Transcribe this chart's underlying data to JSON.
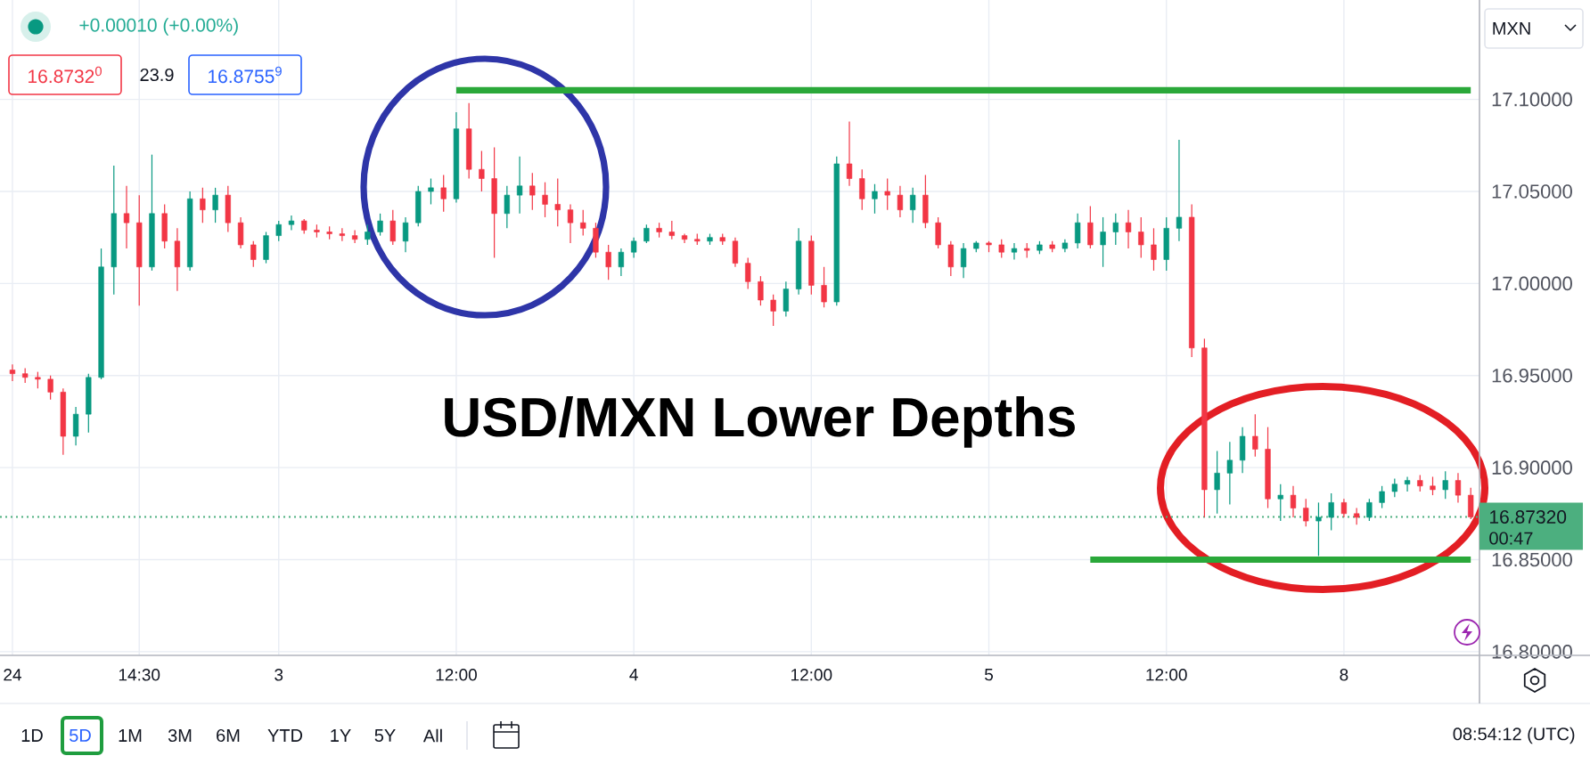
{
  "chart_data": {
    "type": "candlestick",
    "title": "USD/MXN Lower Depths",
    "ylabel": "MXN",
    "categories": [
      "24",
      null,
      null,
      null,
      null,
      null,
      null,
      null,
      null,
      null,
      "14:30",
      null,
      null,
      null,
      null,
      null,
      null,
      null,
      null,
      null,
      null,
      "3",
      null,
      null,
      null,
      null,
      null,
      null,
      null,
      null,
      null,
      null,
      null,
      null,
      null,
      "12:00",
      null,
      null,
      null,
      null,
      null,
      null,
      null,
      null,
      null,
      null,
      null,
      null,
      null,
      "4",
      null,
      null,
      null,
      null,
      null,
      null,
      null,
      null,
      null,
      null,
      null,
      null,
      null,
      "12:00",
      null,
      null,
      null,
      null,
      null,
      null,
      null,
      null,
      null,
      null,
      null,
      null,
      null,
      "5",
      null,
      null,
      null,
      null,
      null,
      null,
      null,
      null,
      null,
      null,
      null,
      null,
      null,
      "12:00",
      null,
      null,
      null,
      null,
      null,
      null,
      null,
      null,
      null,
      null,
      null,
      null,
      null,
      "8",
      null,
      null,
      null,
      null,
      null,
      null,
      null,
      null,
      null,
      null
    ],
    "ohlc": [
      [
        16.953,
        16.956,
        16.947,
        16.951
      ],
      [
        16.951,
        16.954,
        16.946,
        16.949
      ],
      [
        16.949,
        16.952,
        16.943,
        16.948
      ],
      [
        16.948,
        16.95,
        16.937,
        16.941
      ],
      [
        16.941,
        16.943,
        16.907,
        16.917
      ],
      [
        16.917,
        16.933,
        16.912,
        16.929
      ],
      [
        16.929,
        16.951,
        16.919,
        16.949
      ],
      [
        16.949,
        17.019,
        16.948,
        17.009
      ],
      [
        17.009,
        17.064,
        16.994,
        17.038
      ],
      [
        17.038,
        17.053,
        17.019,
        17.033
      ],
      [
        17.033,
        17.048,
        16.988,
        17.009
      ],
      [
        17.009,
        17.07,
        17.007,
        17.038
      ],
      [
        17.038,
        17.043,
        17.019,
        17.023
      ],
      [
        17.023,
        17.03,
        16.996,
        17.009
      ],
      [
        17.009,
        17.05,
        17.007,
        17.046
      ],
      [
        17.046,
        17.052,
        17.033,
        17.04
      ],
      [
        17.04,
        17.052,
        17.033,
        17.048
      ],
      [
        17.048,
        17.053,
        17.028,
        17.033
      ],
      [
        17.033,
        17.036,
        17.019,
        17.021
      ],
      [
        17.021,
        17.023,
        17.009,
        17.013
      ],
      [
        17.013,
        17.028,
        17.011,
        17.026
      ],
      [
        17.026,
        17.034,
        17.023,
        17.032
      ],
      [
        17.032,
        17.037,
        17.029,
        17.034
      ],
      [
        17.034,
        17.035,
        17.027,
        17.029
      ],
      [
        17.029,
        17.032,
        17.025,
        17.028
      ],
      [
        17.028,
        17.031,
        17.024,
        17.027
      ],
      [
        17.027,
        17.03,
        17.023,
        17.026
      ],
      [
        17.026,
        17.029,
        17.022,
        17.024
      ],
      [
        17.024,
        17.032,
        17.021,
        17.028
      ],
      [
        17.028,
        17.038,
        17.026,
        17.034
      ],
      [
        17.034,
        17.04,
        17.021,
        17.023
      ],
      [
        17.023,
        17.036,
        17.017,
        17.033
      ],
      [
        17.033,
        17.053,
        17.031,
        17.05
      ],
      [
        17.05,
        17.057,
        17.043,
        17.052
      ],
      [
        17.052,
        17.059,
        17.039,
        17.046
      ],
      [
        17.046,
        17.093,
        17.044,
        17.084
      ],
      [
        17.084,
        17.098,
        17.057,
        17.062
      ],
      [
        17.062,
        17.072,
        17.05,
        17.057
      ],
      [
        17.057,
        17.074,
        17.014,
        17.038
      ],
      [
        17.038,
        17.053,
        17.03,
        17.048
      ],
      [
        17.048,
        17.069,
        17.038,
        17.053
      ],
      [
        17.053,
        17.06,
        17.04,
        17.048
      ],
      [
        17.048,
        17.055,
        17.036,
        17.043
      ],
      [
        17.043,
        17.057,
        17.031,
        17.04
      ],
      [
        17.04,
        17.043,
        17.022,
        17.033
      ],
      [
        17.033,
        17.04,
        17.026,
        17.03
      ],
      [
        17.03,
        17.033,
        17.014,
        17.017
      ],
      [
        17.017,
        17.021,
        17.002,
        17.009
      ],
      [
        17.009,
        17.019,
        17.004,
        17.017
      ],
      [
        17.017,
        17.025,
        17.014,
        17.023
      ],
      [
        17.023,
        17.032,
        17.022,
        17.03
      ],
      [
        17.03,
        17.033,
        17.025,
        17.028
      ],
      [
        17.028,
        17.034,
        17.024,
        17.026
      ],
      [
        17.026,
        17.027,
        17.022,
        17.024
      ],
      [
        17.024,
        17.027,
        17.021,
        17.023
      ],
      [
        17.023,
        17.027,
        17.021,
        17.025
      ],
      [
        17.025,
        17.027,
        17.021,
        17.023
      ],
      [
        17.023,
        17.025,
        17.009,
        17.011
      ],
      [
        17.011,
        17.014,
        16.997,
        17.001
      ],
      [
        17.001,
        17.004,
        16.988,
        16.991
      ],
      [
        16.991,
        16.994,
        16.977,
        16.985
      ],
      [
        16.985,
        17.001,
        16.982,
        16.997
      ],
      [
        16.997,
        17.03,
        16.994,
        17.023
      ],
      [
        17.023,
        17.026,
        16.994,
        16.999
      ],
      [
        16.999,
        17.009,
        16.987,
        16.99
      ],
      [
        16.99,
        17.069,
        16.988,
        17.065
      ],
      [
        17.065,
        17.088,
        17.053,
        17.057
      ],
      [
        17.057,
        17.062,
        17.04,
        17.046
      ],
      [
        17.046,
        17.054,
        17.038,
        17.05
      ],
      [
        17.05,
        17.057,
        17.04,
        17.048
      ],
      [
        17.048,
        17.053,
        17.036,
        17.04
      ],
      [
        17.04,
        17.052,
        17.033,
        17.048
      ],
      [
        17.048,
        17.059,
        17.03,
        17.033
      ],
      [
        17.033,
        17.036,
        17.019,
        17.021
      ],
      [
        17.021,
        17.023,
        17.004,
        17.009
      ],
      [
        17.009,
        17.022,
        17.003,
        17.019
      ],
      [
        17.019,
        17.023,
        17.017,
        17.022
      ],
      [
        17.022,
        17.023,
        17.017,
        17.021
      ],
      [
        17.021,
        17.024,
        17.014,
        17.017
      ],
      [
        17.017,
        17.022,
        17.013,
        17.019
      ],
      [
        17.019,
        17.022,
        17.014,
        17.018
      ],
      [
        17.018,
        17.023,
        17.016,
        17.021
      ],
      [
        17.021,
        17.023,
        17.017,
        17.019
      ],
      [
        17.019,
        17.024,
        17.017,
        17.022
      ],
      [
        17.022,
        17.038,
        17.019,
        17.033
      ],
      [
        17.033,
        17.042,
        17.019,
        17.021
      ],
      [
        17.021,
        17.036,
        17.009,
        17.028
      ],
      [
        17.028,
        17.038,
        17.021,
        17.033
      ],
      [
        17.033,
        17.04,
        17.019,
        17.028
      ],
      [
        17.028,
        17.036,
        17.014,
        17.021
      ],
      [
        17.021,
        17.03,
        17.007,
        17.013
      ],
      [
        17.013,
        17.036,
        17.007,
        17.03
      ],
      [
        17.03,
        17.078,
        17.023,
        17.036
      ],
      [
        17.036,
        17.043,
        16.96,
        16.965
      ],
      [
        16.965,
        16.97,
        16.873,
        16.888
      ],
      [
        16.888,
        16.909,
        16.875,
        16.897
      ],
      [
        16.897,
        16.914,
        16.88,
        16.904
      ],
      [
        16.904,
        16.922,
        16.897,
        16.917
      ],
      [
        16.917,
        16.929,
        16.906,
        16.91
      ],
      [
        16.91,
        16.922,
        16.878,
        16.883
      ],
      [
        16.883,
        16.891,
        16.871,
        16.885
      ],
      [
        16.885,
        16.89,
        16.873,
        16.878
      ],
      [
        16.878,
        16.883,
        16.868,
        16.871
      ],
      [
        16.871,
        16.881,
        16.852,
        16.873
      ],
      [
        16.873,
        16.886,
        16.866,
        16.881
      ],
      [
        16.881,
        16.883,
        16.873,
        16.875
      ],
      [
        16.875,
        16.878,
        16.869,
        16.873
      ],
      [
        16.873,
        16.883,
        16.871,
        16.881
      ],
      [
        16.881,
        16.89,
        16.878,
        16.887
      ],
      [
        16.887,
        16.894,
        16.884,
        16.891
      ],
      [
        16.891,
        16.895,
        16.887,
        16.893
      ],
      [
        16.893,
        16.896,
        16.887,
        16.89
      ],
      [
        16.89,
        16.895,
        16.885,
        16.888
      ],
      [
        16.888,
        16.898,
        16.883,
        16.893
      ],
      [
        16.893,
        16.897,
        16.881,
        16.885
      ],
      [
        16.885,
        16.889,
        16.872,
        16.8732
      ]
    ],
    "colors": [
      "#f23645",
      "#f23645",
      "#f23645",
      "#f23645",
      "#f23645",
      "#089981",
      "#089981",
      "#089981",
      "#089981",
      "#f23645",
      "#f23645",
      "#089981",
      "#f23645",
      "#f23645",
      "#089981",
      "#f23645",
      "#089981",
      "#f23645",
      "#f23645",
      "#f23645",
      "#089981",
      "#089981",
      "#089981",
      "#f23645",
      "#f23645",
      "#f23645",
      "#f23645",
      "#f23645",
      "#089981",
      "#089981",
      "#f23645",
      "#089981",
      "#089981",
      "#089981",
      "#f23645",
      "#089981",
      "#f23645",
      "#f23645",
      "#f23645",
      "#089981",
      "#089981",
      "#f23645",
      "#f23645",
      "#f23645",
      "#f23645",
      "#f23645",
      "#f23645",
      "#f23645",
      "#089981",
      "#089981",
      "#089981",
      "#f23645",
      "#f23645",
      "#f23645",
      "#f23645",
      "#089981",
      "#f23645",
      "#f23645",
      "#f23645",
      "#f23645",
      "#f23645",
      "#089981",
      "#089981",
      "#f23645",
      "#f23645",
      "#089981",
      "#f23645",
      "#f23645",
      "#089981",
      "#f23645",
      "#f23645",
      "#089981",
      "#f23645",
      "#f23645",
      "#f23645",
      "#089981",
      "#089981",
      "#f23645",
      "#f23645",
      "#089981",
      "#f23645",
      "#089981",
      "#f23645",
      "#089981",
      "#089981",
      "#f23645",
      "#089981",
      "#089981",
      "#f23645",
      "#f23645",
      "#f23645",
      "#089981",
      "#089981",
      "#f23645",
      "#f23645",
      "#089981",
      "#089981",
      "#089981",
      "#f23645",
      "#f23645",
      "#089981",
      "#f23645",
      "#f23645",
      "#089981",
      "#089981",
      "#f23645",
      "#f23645",
      "#089981",
      "#089981",
      "#089981",
      "#089981",
      "#f23645",
      "#f23645",
      "#089981",
      "#f23645",
      "#f23645"
    ],
    "series": [
      {
        "type": "line",
        "color": "#2aa83a",
        "values": [
          null,
          null,
          null,
          null,
          null,
          null,
          null,
          null,
          null,
          null,
          null,
          null,
          null,
          null,
          null,
          null,
          null,
          null,
          null,
          null,
          null,
          null,
          null,
          null,
          null,
          null,
          null,
          null,
          null,
          null,
          null,
          null,
          null,
          null,
          null,
          17.105,
          17.105,
          17.105,
          17.105,
          17.105,
          17.105,
          17.105,
          17.105,
          17.105,
          17.105,
          17.105,
          17.105,
          17.105,
          17.105,
          17.105,
          17.105,
          17.105,
          17.105,
          17.105,
          17.105,
          17.105,
          17.105,
          17.105,
          17.105,
          17.105,
          17.105,
          17.105,
          17.105,
          17.105,
          17.105,
          17.105,
          17.105,
          17.105,
          17.105,
          17.105,
          17.105,
          17.105,
          17.105,
          17.105,
          17.105,
          17.105,
          17.105,
          17.105,
          17.105,
          17.105,
          17.105,
          17.105,
          17.105,
          17.105,
          17.105,
          17.105,
          17.105,
          17.105,
          17.105,
          17.105,
          17.105,
          17.105,
          17.105,
          17.105,
          17.105,
          17.105,
          17.105,
          17.105,
          17.105,
          17.105,
          17.105,
          17.105,
          17.105,
          17.105,
          17.105,
          17.105,
          17.105,
          17.105,
          17.105,
          17.105,
          17.105,
          17.105,
          17.105,
          17.105,
          17.105,
          17.105
        ]
      },
      {
        "type": "line",
        "color": "#2aa83a",
        "values": [
          null,
          null,
          null,
          null,
          null,
          null,
          null,
          null,
          null,
          null,
          null,
          null,
          null,
          null,
          null,
          null,
          null,
          null,
          null,
          null,
          null,
          null,
          null,
          null,
          null,
          null,
          null,
          null,
          null,
          null,
          null,
          null,
          null,
          null,
          null,
          null,
          null,
          null,
          null,
          null,
          null,
          null,
          null,
          null,
          null,
          null,
          null,
          null,
          null,
          null,
          null,
          null,
          null,
          null,
          null,
          null,
          null,
          null,
          null,
          null,
          null,
          null,
          null,
          null,
          null,
          null,
          null,
          null,
          null,
          null,
          null,
          null,
          null,
          null,
          null,
          null,
          null,
          null,
          null,
          null,
          null,
          null,
          null,
          null,
          null,
          16.85,
          16.85,
          16.85,
          16.85,
          16.85,
          16.85,
          16.85,
          16.85,
          16.85,
          16.85,
          16.85,
          16.85,
          16.85,
          16.85,
          16.85,
          16.85,
          16.85,
          16.85,
          16.85,
          16.85,
          16.85,
          16.85,
          16.85,
          16.85,
          16.85,
          16.85,
          16.85,
          16.85,
          16.85,
          16.85,
          16.85
        ]
      }
    ],
    "ylim": [
      16.798,
      17.154
    ],
    "yticks": [
      {
        "value": 16.8,
        "label": "16.80000"
      },
      {
        "value": 16.85,
        "label": "16.85000"
      },
      {
        "value": 16.9,
        "label": "16.90000"
      },
      {
        "value": 16.95,
        "label": "16.95000"
      },
      {
        "value": 17.0,
        "label": "17.00000"
      },
      {
        "value": 17.05,
        "label": "17.05000"
      },
      {
        "value": 17.1,
        "label": "17.10000"
      }
    ],
    "grid": true,
    "ref_lines": [
      {
        "axis": "y",
        "value": 16.8732,
        "label": "16.87320",
        "color": "#4caf7f",
        "line_style": "dotted"
      }
    ],
    "annotations": [
      "+0.00010 (+0.00%)",
      "16.8732$^{0}$",
      "23.9",
      "16.8755$^{9}$",
      "00:47",
      "1D",
      "5D",
      "1M",
      "3M",
      "6M",
      "YTD",
      "1Y",
      "5Y",
      "All",
      "08:54:12 (UTC)"
    ]
  }
}
